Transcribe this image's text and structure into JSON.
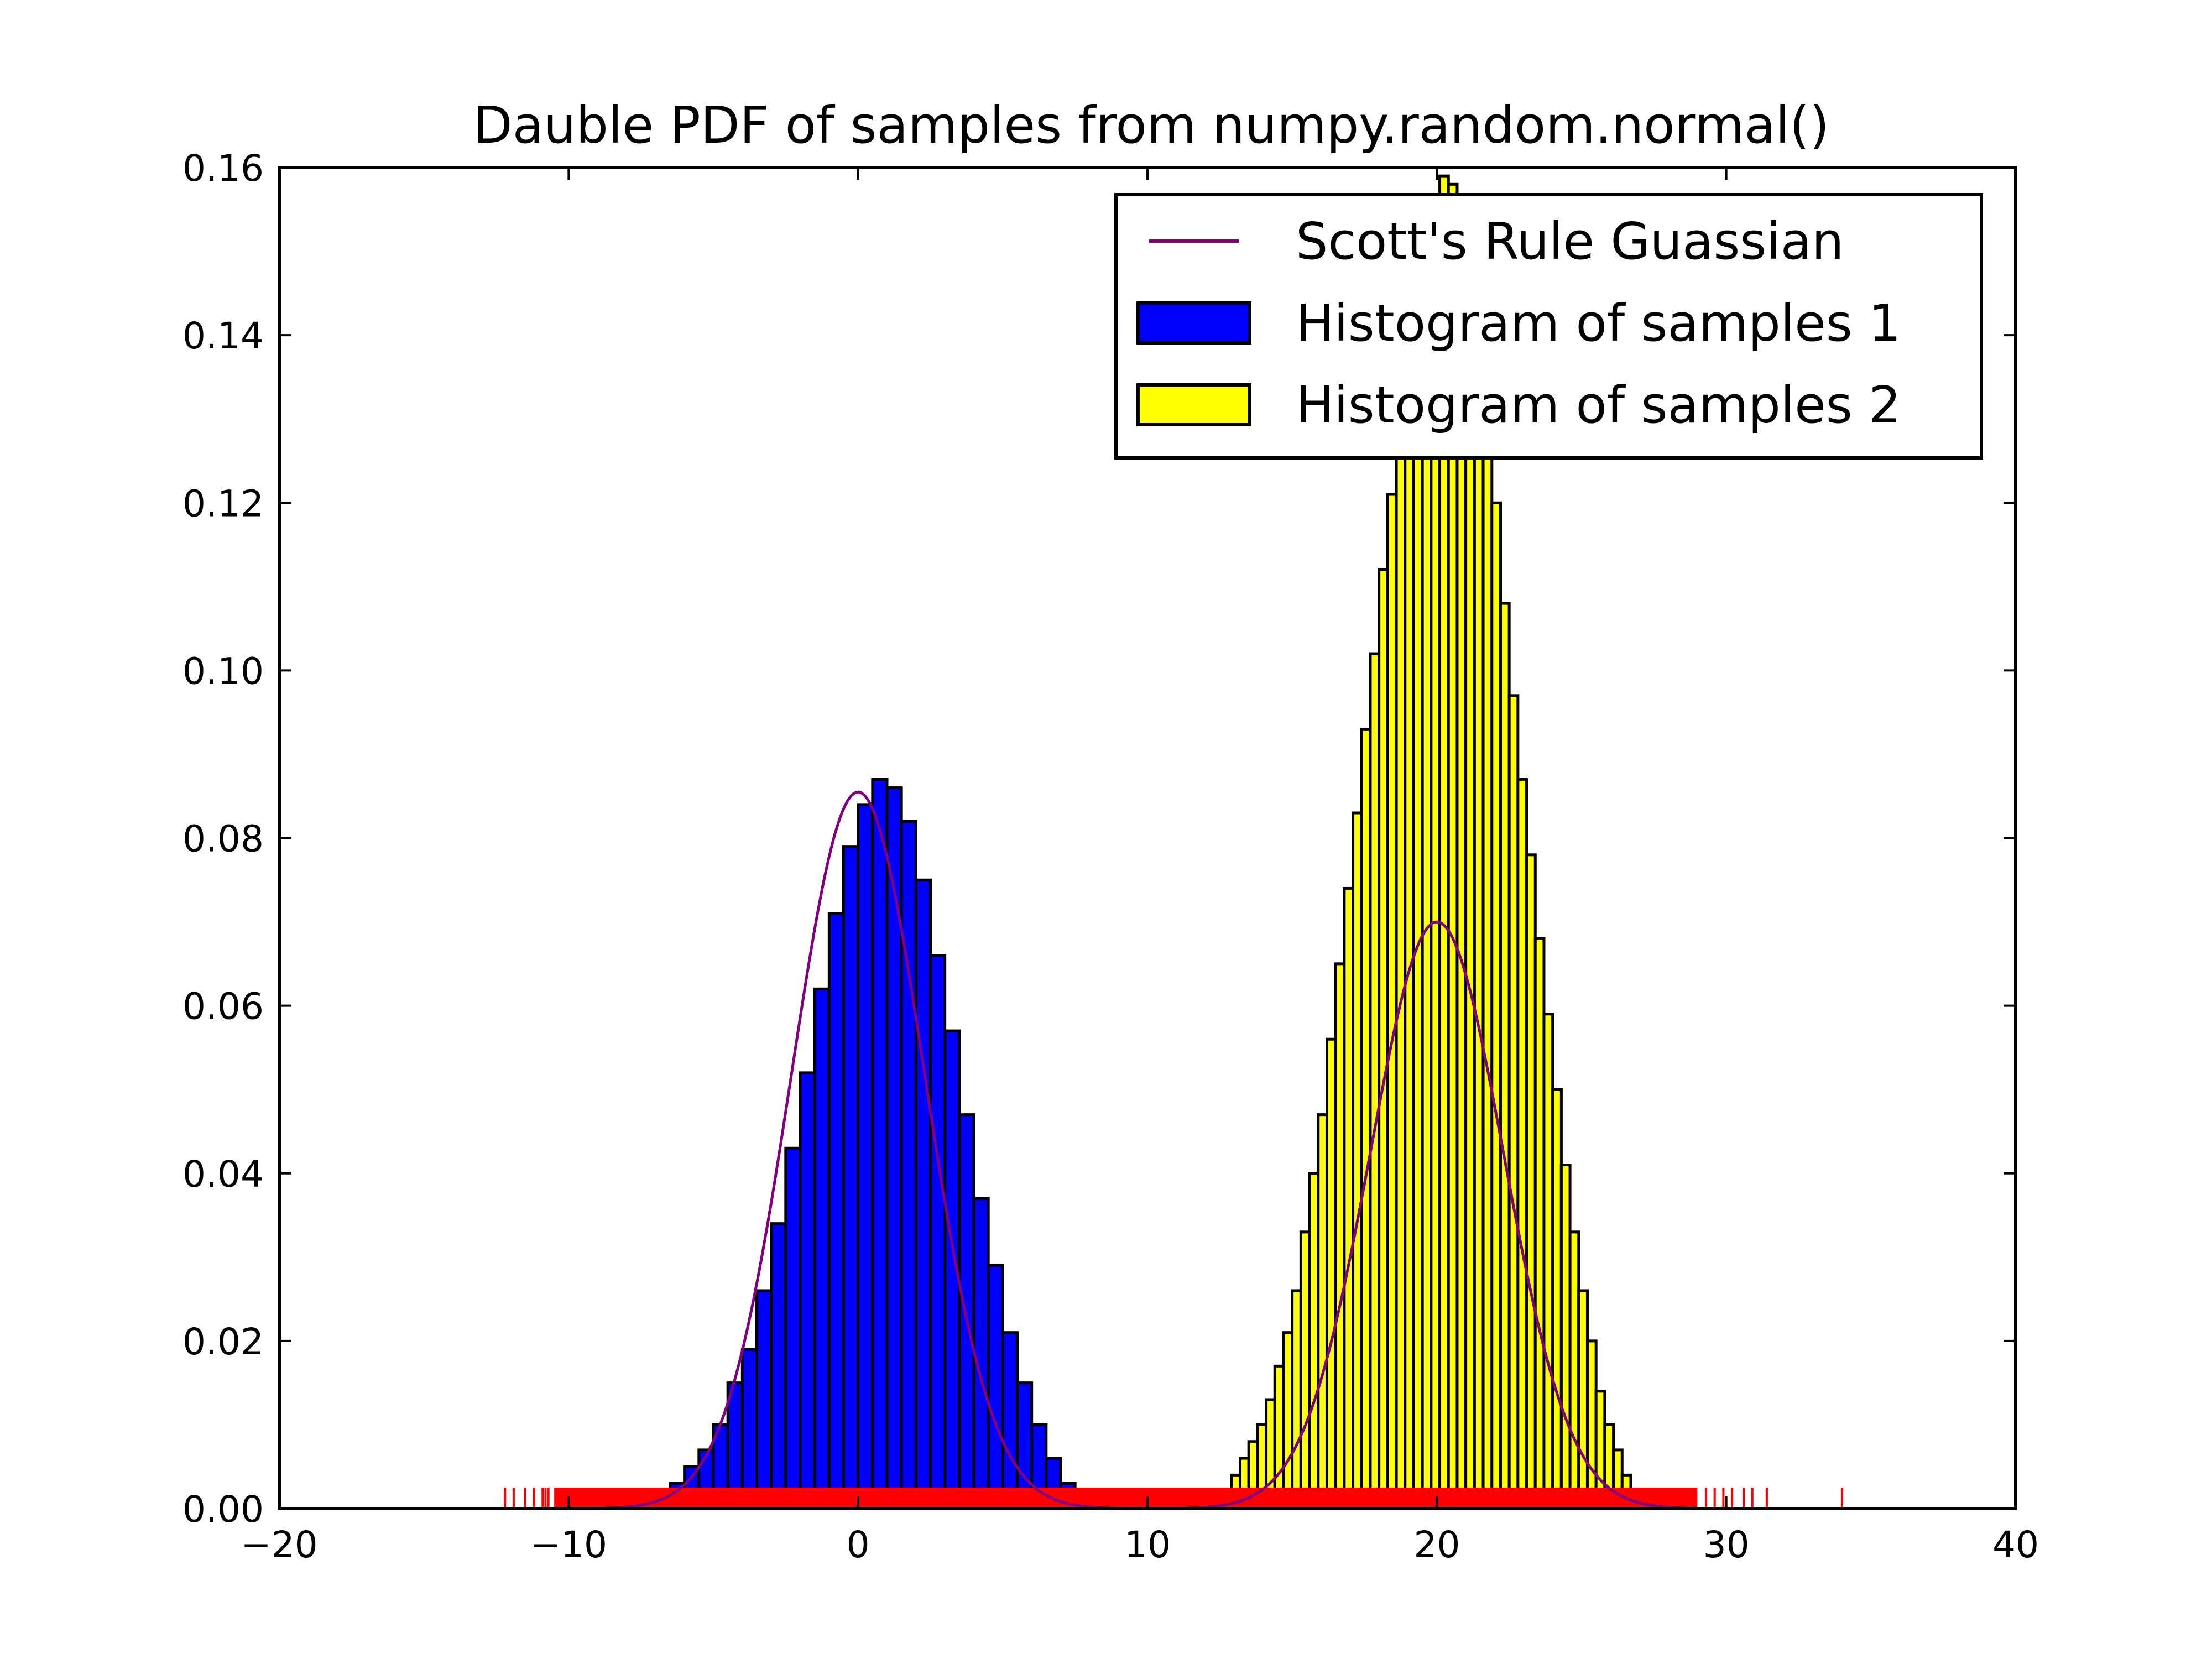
{
  "chart_data": {
    "type": "bar",
    "title": "Dauble PDF of samples from numpy.random.normal()",
    "xlabel": "",
    "ylabel": "",
    "xlim": [
      -20,
      40
    ],
    "ylim": [
      0,
      0.16
    ],
    "xticks": [
      -20,
      -10,
      0,
      10,
      20,
      30,
      40
    ],
    "xtick_labels": [
      "−20",
      "−10",
      "0",
      "10",
      "20",
      "30",
      "40"
    ],
    "yticks": [
      0.0,
      0.02,
      0.04,
      0.06,
      0.08,
      0.1,
      0.12,
      0.14,
      0.16
    ],
    "ytick_labels": [
      "0.00",
      "0.02",
      "0.04",
      "0.06",
      "0.08",
      "0.10",
      "0.12",
      "0.14",
      "0.16"
    ],
    "grid": false,
    "legend_position": "top-right",
    "legend": [
      {
        "label": "Scott's Rule Guassian",
        "kind": "line",
        "color": "#800080"
      },
      {
        "label": "Histogram of samples 1",
        "kind": "patch",
        "color": "#0000ff"
      },
      {
        "label": "Histogram of samples 2",
        "kind": "patch",
        "color": "#ffff00"
      }
    ],
    "series": [
      {
        "name": "Histogram of samples 1",
        "kind": "histogram",
        "color": "#0000ff",
        "bin_width": 0.5,
        "bins_x_start": [
          -7.5,
          -7.0,
          -6.5,
          -6.0,
          -5.5,
          -5.0,
          -4.5,
          -4.0,
          -3.5,
          -3.0,
          -2.5,
          -2.0,
          -1.5,
          -1.0,
          -0.5,
          0.0,
          0.5,
          1.0,
          1.5,
          2.0,
          2.5,
          3.0,
          3.5,
          4.0,
          4.5,
          5.0,
          5.5,
          6.0,
          6.5,
          7.0
        ],
        "values": [
          0.001,
          0.002,
          0.003,
          0.005,
          0.007,
          0.01,
          0.015,
          0.019,
          0.026,
          0.034,
          0.043,
          0.052,
          0.062,
          0.071,
          0.079,
          0.084,
          0.087,
          0.086,
          0.082,
          0.075,
          0.066,
          0.057,
          0.047,
          0.037,
          0.029,
          0.021,
          0.015,
          0.01,
          0.006,
          0.003
        ]
      },
      {
        "name": "Histogram of samples 2",
        "kind": "histogram",
        "color": "#ffff00",
        "bin_width": 0.3,
        "bins_x_start": [
          12.9,
          13.2,
          13.5,
          13.8,
          14.1,
          14.4,
          14.7,
          15.0,
          15.3,
          15.6,
          15.9,
          16.2,
          16.5,
          16.8,
          17.1,
          17.4,
          17.7,
          18.0,
          18.3,
          18.6,
          18.9,
          19.2,
          19.5,
          19.8,
          20.1,
          20.4,
          20.7,
          21.0,
          21.3,
          21.6,
          21.9,
          22.2,
          22.5,
          22.8,
          23.1,
          23.4,
          23.7,
          24.0,
          24.3,
          24.6,
          24.9,
          25.2,
          25.5,
          25.8,
          26.1,
          26.4,
          26.7
        ],
        "values": [
          0.004,
          0.006,
          0.008,
          0.01,
          0.013,
          0.017,
          0.021,
          0.026,
          0.033,
          0.04,
          0.047,
          0.056,
          0.065,
          0.074,
          0.083,
          0.093,
          0.102,
          0.112,
          0.121,
          0.13,
          0.138,
          0.145,
          0.151,
          0.156,
          0.159,
          0.158,
          0.155,
          0.148,
          0.14,
          0.131,
          0.12,
          0.108,
          0.097,
          0.087,
          0.078,
          0.068,
          0.059,
          0.05,
          0.041,
          0.033,
          0.026,
          0.02,
          0.014,
          0.01,
          0.007,
          0.004,
          0.002
        ]
      },
      {
        "name": "Scott's Rule Guassian",
        "kind": "line",
        "color": "#800080",
        "components": [
          {
            "mean": 0.0,
            "sd": 2.3,
            "peak": 0.0855
          },
          {
            "mean": 20.0,
            "sd": 2.3,
            "peak": 0.07
          }
        ],
        "x_range": [
          -9,
          29
        ]
      },
      {
        "name": "",
        "kind": "rug",
        "color": "#ff0000",
        "dense_ranges": [
          [
            -10.5,
            29.0
          ]
        ],
        "sparse_x": [
          -12.2,
          -11.9,
          -11.5,
          -11.2,
          -10.9,
          -10.8,
          -10.7,
          29.3,
          29.6,
          29.9,
          30.2,
          30.6,
          30.9,
          31.4,
          34.0
        ],
        "height": 0.0025
      }
    ]
  }
}
